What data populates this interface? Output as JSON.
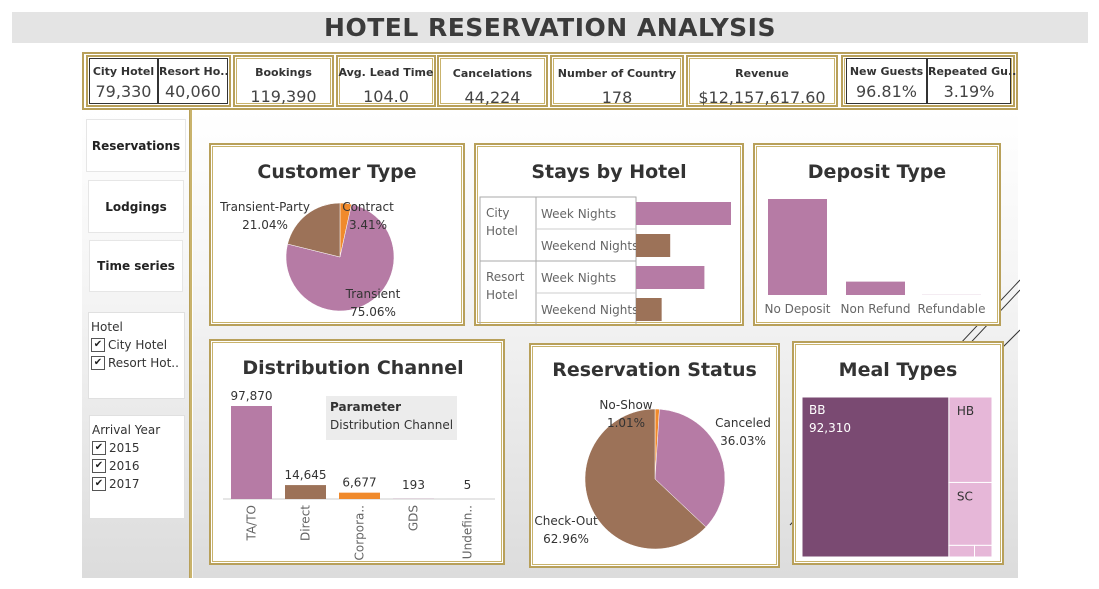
{
  "title": "HOTEL RESERVATION ANALYSIS",
  "kpis": {
    "city_hotel": {
      "label": "City Hotel",
      "value": "79,330"
    },
    "resort_hotel": {
      "label": "Resort Ho..",
      "value": "40,060"
    },
    "bookings": {
      "label": "Bookings",
      "value": "119,390"
    },
    "lead_time": {
      "label": "Avg. Lead Time",
      "value": "104.0"
    },
    "cancelations": {
      "label": "Cancelations",
      "value": "44,224"
    },
    "countries": {
      "label": "Number of Country",
      "value": "178"
    },
    "revenue": {
      "label": "Revenue",
      "value": "$12,157,617.60"
    },
    "new_guests": {
      "label": "New Guests",
      "value": "96.81%"
    },
    "repeated_guests": {
      "label": "Repeated Gu..",
      "value": "3.19%"
    }
  },
  "nav": {
    "reservations": "Reservations",
    "lodgings": "Lodgings",
    "time_series": "Time series"
  },
  "filters": {
    "hotel": {
      "title": "Hotel",
      "items": [
        "City Hotel",
        "Resort Hot.."
      ]
    },
    "year": {
      "title": "Arrival Year",
      "items": [
        "2015",
        "2016",
        "2017"
      ]
    }
  },
  "colors": {
    "pink": "#b67ba5",
    "brown": "#9c7258",
    "orange": "#f08a2c",
    "purple": "#7a4a72",
    "light_pink": "#e6b7d8"
  },
  "chart_data": [
    {
      "type": "pie",
      "title": "Customer Type",
      "slices": [
        {
          "label": "Transient",
          "value": 75.06,
          "display": "75.06%",
          "color": "#b67ba5"
        },
        {
          "label": "Transient-Party",
          "value": 21.04,
          "display": "21.04%",
          "color": "#9c7258"
        },
        {
          "label": "Contract",
          "value": 3.41,
          "display": "3.41%",
          "color": "#f08a2c"
        }
      ]
    },
    {
      "type": "bar",
      "title": "Stays by Hotel",
      "orientation": "horizontal",
      "rows": [
        {
          "group": "City Hotel",
          "category": "Week Nights",
          "value": 100,
          "color": "#b67ba5"
        },
        {
          "group": "City Hotel",
          "category": "Weekend Nights",
          "value": 36,
          "color": "#9c7258"
        },
        {
          "group": "Resort Hotel",
          "category": "Week Nights",
          "value": 72,
          "color": "#b67ba5"
        },
        {
          "group": "Resort Hotel",
          "category": "Weekend Nights",
          "value": 27,
          "color": "#9c7258"
        }
      ],
      "group_labels": [
        [
          "City",
          "Hotel"
        ],
        [
          "Resort",
          "Hotel"
        ]
      ]
    },
    {
      "type": "bar",
      "title": "Deposit Type",
      "categories": [
        "No Deposit",
        "Non Refund",
        "Refundable"
      ],
      "values": [
        104641,
        14587,
        162
      ],
      "colors": [
        "#b67ba5",
        "#b67ba5",
        "#b67ba5"
      ]
    },
    {
      "type": "bar",
      "title": "Distribution Channel",
      "categories": [
        "TA/TO",
        "Direct",
        "Corpora..",
        "GDS",
        "Undefin.."
      ],
      "values": [
        97870,
        14645,
        6677,
        193,
        5
      ],
      "labels": [
        "97,870",
        "14,645",
        "6,677",
        "193",
        "5"
      ],
      "colors": [
        "#b67ba5",
        "#9c7258",
        "#f08a2c",
        "#b67ba5",
        "#b67ba5"
      ],
      "parameter": {
        "label": "Parameter",
        "value": "Distribution Channel"
      }
    },
    {
      "type": "pie",
      "title": "Reservation Status",
      "slices": [
        {
          "label": "Canceled",
          "value": 36.03,
          "display": "36.03%",
          "color": "#b67ba5"
        },
        {
          "label": "Check-Out",
          "value": 62.96,
          "display": "62.96%",
          "color": "#9c7258"
        },
        {
          "label": "No-Show",
          "value": 1.01,
          "display": "1.01%",
          "color": "#f08a2c"
        }
      ]
    },
    {
      "type": "treemap",
      "title": "Meal Types",
      "items": [
        {
          "label": "BB",
          "value": 92310,
          "display": "92,310",
          "color": "#7a4a72"
        },
        {
          "label": "HB",
          "value": 14463,
          "color": "#e6b7d8"
        },
        {
          "label": "SC",
          "value": 10650,
          "color": "#e6b7d8"
        },
        {
          "label": "",
          "value": 1169,
          "color": "#e6b7d8"
        },
        {
          "label": "",
          "value": 798,
          "color": "#e6b7d8"
        }
      ]
    }
  ]
}
